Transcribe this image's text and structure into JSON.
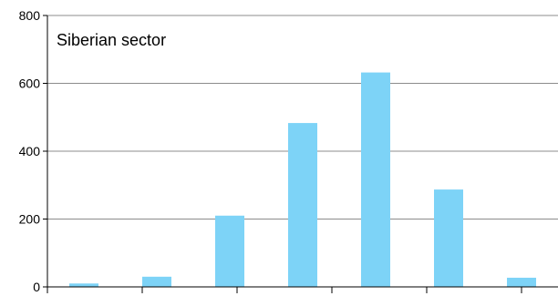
{
  "chart_data": {
    "type": "bar",
    "title": "Siberian sector",
    "xlabel": "",
    "ylabel": "",
    "ylim": [
      0,
      800
    ],
    "y_ticks": [
      "0",
      "200",
      "400",
      "600",
      "800"
    ],
    "x_tick_labels": [],
    "categories": [
      "",
      "",
      "",
      "",
      "",
      "",
      ""
    ],
    "values": [
      10,
      30,
      210,
      483,
      632,
      287,
      27
    ],
    "grid": true,
    "legend": "none",
    "bar_color": "#7dd3f7",
    "grid_color": "#8c8c8c",
    "axis_color": "#000000"
  }
}
